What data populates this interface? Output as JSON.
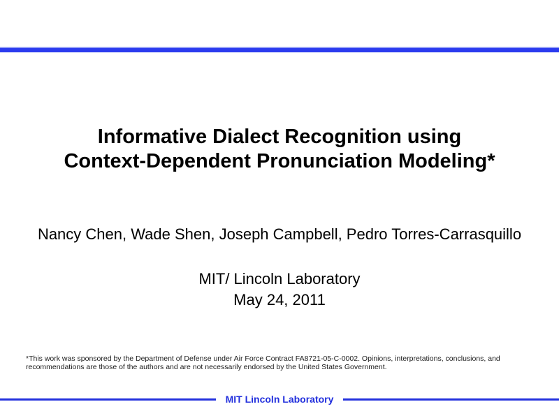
{
  "slide": {
    "title_lines": [
      "Informative Dialect Recognition using",
      "Context-Dependent Pronunciation Modeling*"
    ],
    "authors": "Nancy Chen, Wade Shen, Joseph Campbell, Pedro Torres-Carrasquillo",
    "affiliation": "MIT/ Lincoln Laboratory",
    "date": "May 24, 2011",
    "footnote": "*This work was sponsored by the Department of Defense under Air Force Contract FA8721-05-C-0002. Opinions, interpretations, conclusions, and recommendations are those of the authors and are not necessarily endorsed by the United States Government.",
    "footer_label": "MIT Lincoln Laboratory"
  },
  "colors": {
    "top_bar_blue": "#2b3bef",
    "footer_blue": "#2230dd",
    "text_color": "#000000",
    "background": "#ffffff"
  }
}
